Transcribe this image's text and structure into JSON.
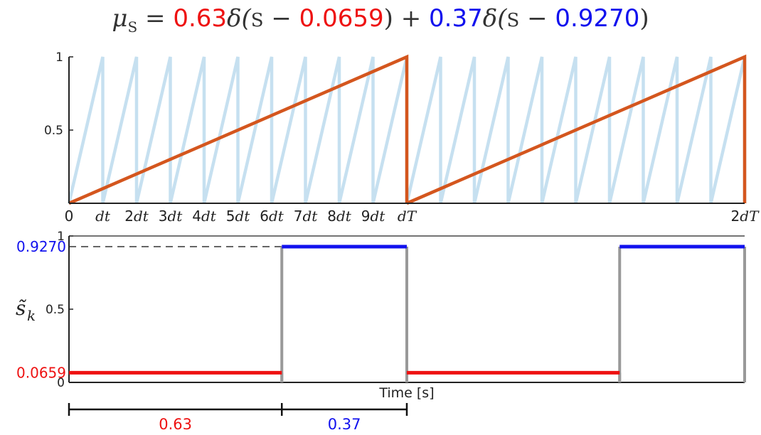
{
  "title": {
    "mu": "μ",
    "mu_sub": "S",
    "eq": " = ",
    "w1": "0.63",
    "delta1_open": "δ(",
    "s1": "S",
    "minus1": " − ",
    "c1": "0.0659",
    "close1": ")",
    "plus": " + ",
    "w2": "0.37",
    "delta2_open": "δ(",
    "s2": "S",
    "minus2": " − ",
    "c2": "0.9270",
    "close2": ")"
  },
  "colors": {
    "fast_sawtooth": "#c6e0f0",
    "slow_sawtooth": "#d4561e",
    "red": "#ee1111",
    "blue": "#1111ee",
    "gray": "#999999",
    "axis": "#222222"
  },
  "chart_data": [
    {
      "type": "line",
      "ylim": [
        0,
        1
      ],
      "yticks": [
        "0.5",
        "1"
      ],
      "xticks": [
        {
          "pre": "0",
          "it": ""
        },
        {
          "pre": "",
          "it": "dt"
        },
        {
          "pre": "2",
          "it": "dt"
        },
        {
          "pre": "3",
          "it": "dt"
        },
        {
          "pre": "4",
          "it": "dt"
        },
        {
          "pre": "5",
          "it": "dt"
        },
        {
          "pre": "6",
          "it": "dt"
        },
        {
          "pre": "7",
          "it": "dt"
        },
        {
          "pre": "8",
          "it": "dt"
        },
        {
          "pre": "9",
          "it": "dt"
        },
        {
          "pre": "",
          "it": "dT"
        },
        {
          "pre": "2",
          "it": "dT"
        }
      ],
      "xtick_positions": [
        0,
        0.1,
        0.2,
        0.3,
        0.4,
        0.5,
        0.6,
        0.7,
        0.8,
        0.9,
        1.0,
        2.0
      ],
      "series": [
        {
          "values_desc": "fast sawtooth, period dt, rising 0 to 1",
          "period": 0.1,
          "color": "fast_sawtooth"
        },
        {
          "values_desc": "slow sawtooth, period dT, rising 0 to 1",
          "period": 1.0,
          "color": "slow_sawtooth"
        }
      ],
      "xlim": [
        0,
        2
      ]
    },
    {
      "type": "line",
      "ylabel": "s̃",
      "ylabel_sub": "k",
      "xlabel": "Time [s]",
      "ylim": [
        0,
        1
      ],
      "yticks": [
        "0",
        "0.5",
        "1"
      ],
      "level_labels": {
        "low": "0.0659",
        "high": "0.9270"
      },
      "segments": [
        {
          "x0": 0.0,
          "x1": 0.63,
          "y": 0.0659,
          "color": "red"
        },
        {
          "x0": 0.63,
          "x1": 1.0,
          "y": 0.927,
          "color": "blue"
        },
        {
          "x0": 1.0,
          "x1": 1.63,
          "y": 0.0659,
          "color": "red"
        },
        {
          "x0": 1.63,
          "x1": 2.0,
          "y": 0.927,
          "color": "blue"
        }
      ],
      "xlim": [
        0,
        2
      ]
    }
  ],
  "durations": [
    {
      "label": "0.63",
      "from": 0.0,
      "to": 0.63,
      "color": "red"
    },
    {
      "label": "0.37",
      "from": 0.63,
      "to": 1.0,
      "color": "blue"
    }
  ]
}
